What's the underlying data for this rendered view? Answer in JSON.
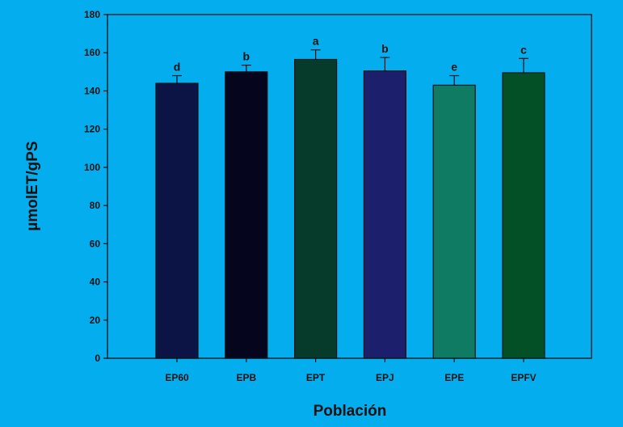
{
  "chart_data": {
    "type": "bar",
    "title": "",
    "xlabel": "Población",
    "ylabel": "µmolET/gPS",
    "categories": [
      "EP60",
      "EPB",
      "EPT",
      "EPJ",
      "EPE",
      "EPFV"
    ],
    "values": [
      144,
      150,
      156.5,
      150.5,
      143,
      149.5
    ],
    "errors": [
      4,
      3.5,
      5,
      7,
      5,
      7.5
    ],
    "significance_labels": [
      "d",
      "b",
      "a",
      "b",
      "e",
      "c"
    ],
    "ylim": [
      0,
      180
    ],
    "yticks": [
      0,
      20,
      40,
      60,
      80,
      100,
      120,
      140,
      160,
      180
    ],
    "grid": false,
    "background_color": "#04aeee",
    "bar_colors": [
      "#0b1445",
      "#05051e",
      "#063b2c",
      "#1c1f6b",
      "#0e7b62",
      "#045026"
    ]
  }
}
